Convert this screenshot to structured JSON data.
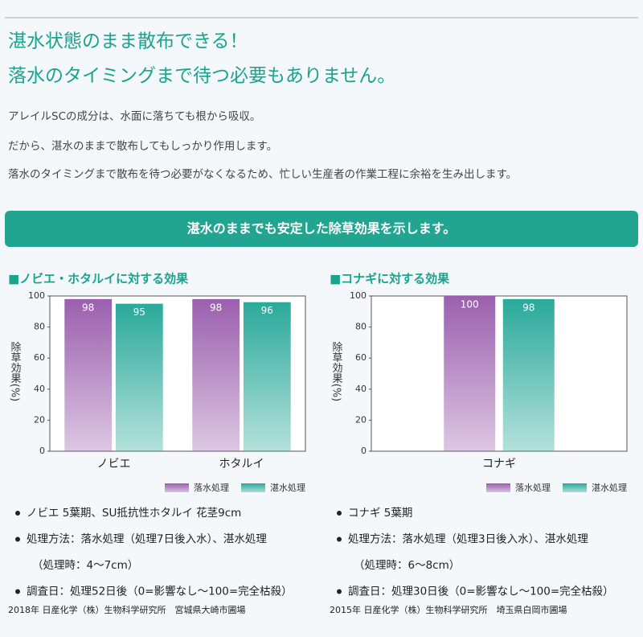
{
  "header": {
    "title_lines": [
      "湛水状態のまま散布できる！",
      "落水のタイミングまで待つ必要もありません。"
    ],
    "paragraphs": [
      "アレイルSCの成分は、水面に落ちても根から吸収。",
      "だから、湛水のままで散布してもしっかり作用します。",
      "落水のタイミングまで散布を待つ必要がなくなるため、忙しい生産者の作業工程に余裕を生み出します。"
    ],
    "banner": "湛水のままでも安定した除草効果を示します。"
  },
  "chart_data": [
    {
      "type": "bar",
      "title": "■ノビエ・ホタルイに対する効果",
      "ylabel": "除草効果(%)",
      "categories": [
        "ノビエ",
        "ホタルイ"
      ],
      "series": [
        {
          "name": "落水処理",
          "color": "#9b5fae",
          "values": [
            98,
            98
          ]
        },
        {
          "name": "湛水処理",
          "color": "#2aa99a",
          "values": [
            95,
            96
          ]
        }
      ],
      "ylim": [
        0,
        100
      ],
      "yticks": [
        0,
        20,
        40,
        60,
        80,
        100
      ],
      "grid": false,
      "notes": [
        [
          "ノビエ 5葉期、SU抵抗性ホタルイ 花茎9cm"
        ],
        [
          "処理方法：落水処理（処理7日後入水）、湛水処理",
          "（処理時：4〜7cm）"
        ],
        [
          "調査日：処理52日後（0=影響なし〜100=完全枯殺）"
        ]
      ],
      "source": "2018年 日産化学（株）生物科学研究所　宮城県大崎市圃場"
    },
    {
      "type": "bar",
      "title": "■コナギに対する効果",
      "ylabel": "除草効果(%)",
      "categories": [
        "コナギ"
      ],
      "series": [
        {
          "name": "落水処理",
          "color": "#9b5fae",
          "values": [
            100
          ]
        },
        {
          "name": "湛水処理",
          "color": "#2aa99a",
          "values": [
            98
          ]
        }
      ],
      "ylim": [
        0,
        100
      ],
      "yticks": [
        0,
        20,
        40,
        60,
        80,
        100
      ],
      "grid": false,
      "notes": [
        [
          "コナギ 5葉期"
        ],
        [
          "処理方法：落水処理（処理3日後入水）、湛水処理",
          "（処理時：6〜8cm）"
        ],
        [
          "調査日：処理30日後（0=影響なし〜100=完全枯殺）"
        ]
      ],
      "source": "2015年 日産化学（株）生物科学研究所　埼玉県白岡市圃場"
    }
  ]
}
